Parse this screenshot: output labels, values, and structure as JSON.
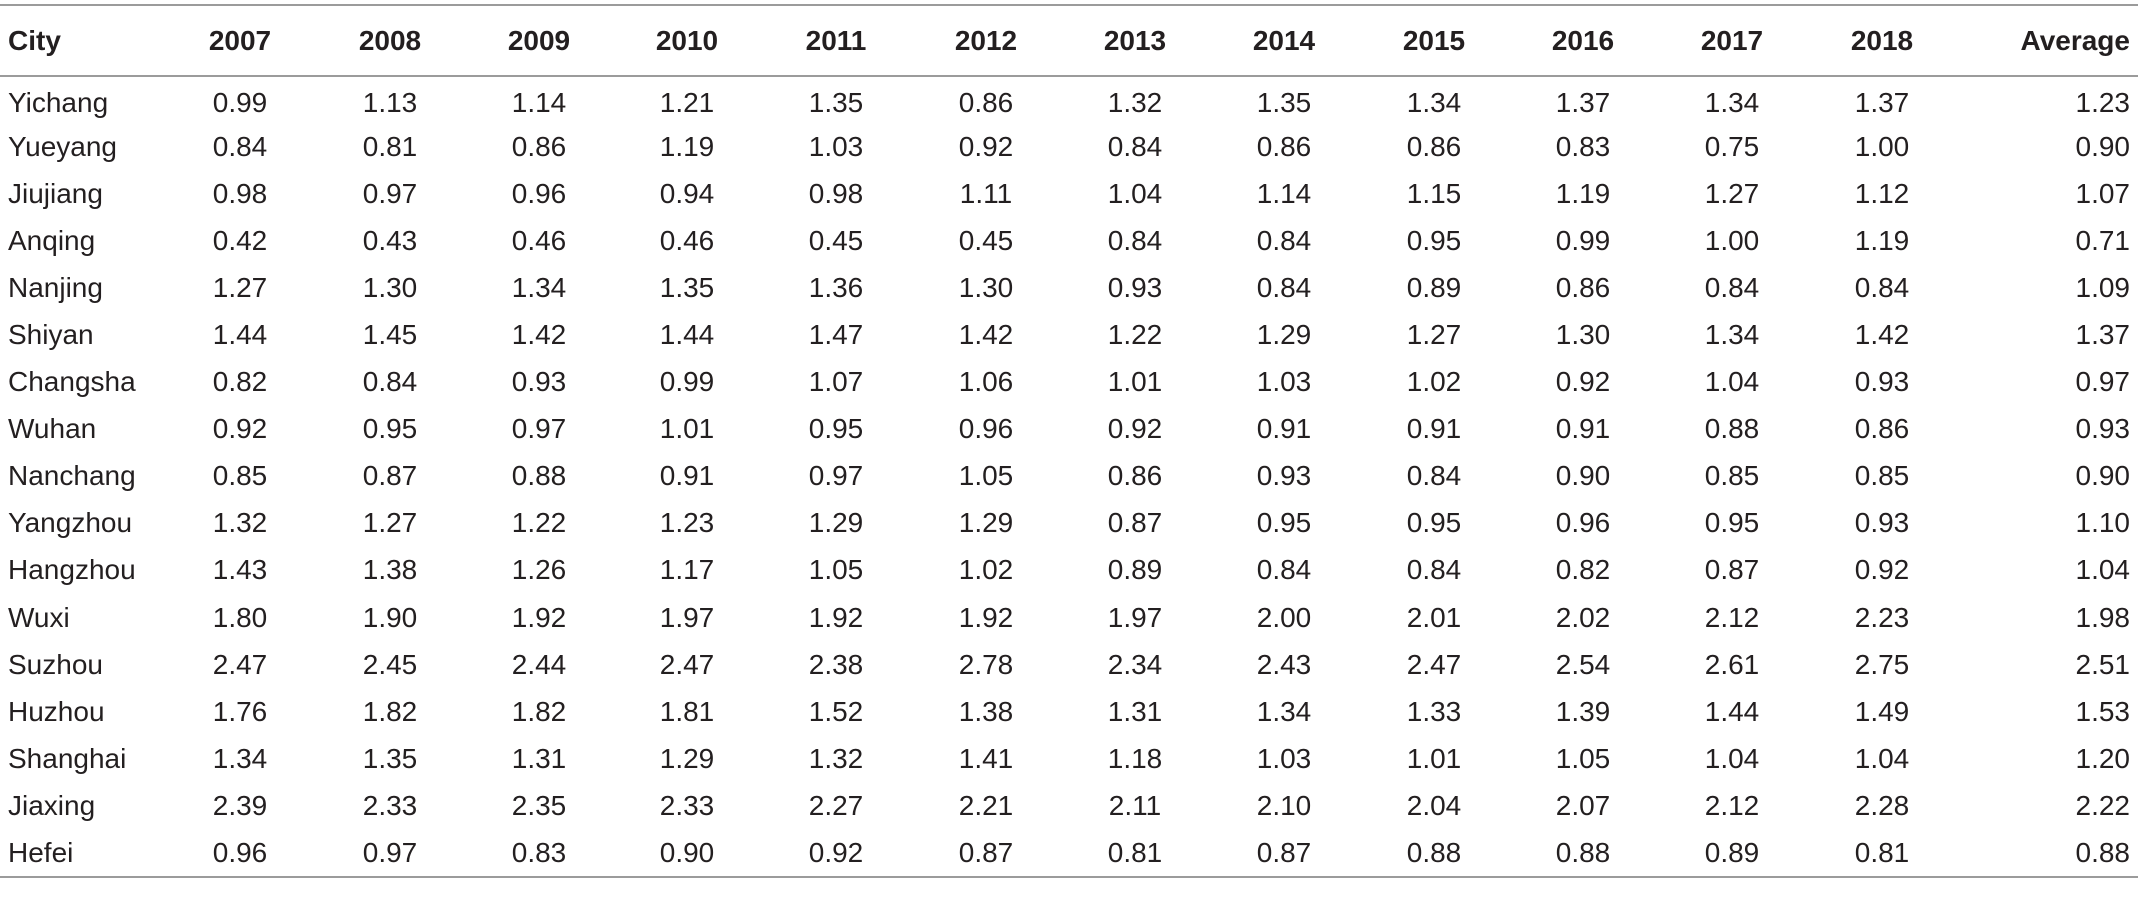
{
  "table": {
    "columns": [
      "City",
      "2007",
      "2008",
      "2009",
      "2010",
      "2011",
      "2012",
      "2013",
      "2014",
      "2015",
      "2016",
      "2017",
      "2018",
      "Average"
    ],
    "rows": [
      [
        "Yichang",
        "0.99",
        "1.13",
        "1.14",
        "1.21",
        "1.35",
        "0.86",
        "1.32",
        "1.35",
        "1.34",
        "1.37",
        "1.34",
        "1.37",
        "1.23"
      ],
      [
        "Yueyang",
        "0.84",
        "0.81",
        "0.86",
        "1.19",
        "1.03",
        "0.92",
        "0.84",
        "0.86",
        "0.86",
        "0.83",
        "0.75",
        "1.00",
        "0.90"
      ],
      [
        "Jiujiang",
        "0.98",
        "0.97",
        "0.96",
        "0.94",
        "0.98",
        "1.11",
        "1.04",
        "1.14",
        "1.15",
        "1.19",
        "1.27",
        "1.12",
        "1.07"
      ],
      [
        "Anqing",
        "0.42",
        "0.43",
        "0.46",
        "0.46",
        "0.45",
        "0.45",
        "0.84",
        "0.84",
        "0.95",
        "0.99",
        "1.00",
        "1.19",
        "0.71"
      ],
      [
        "Nanjing",
        "1.27",
        "1.30",
        "1.34",
        "1.35",
        "1.36",
        "1.30",
        "0.93",
        "0.84",
        "0.89",
        "0.86",
        "0.84",
        "0.84",
        "1.09"
      ],
      [
        "Shiyan",
        "1.44",
        "1.45",
        "1.42",
        "1.44",
        "1.47",
        "1.42",
        "1.22",
        "1.29",
        "1.27",
        "1.30",
        "1.34",
        "1.42",
        "1.37"
      ],
      [
        "Changsha",
        "0.82",
        "0.84",
        "0.93",
        "0.99",
        "1.07",
        "1.06",
        "1.01",
        "1.03",
        "1.02",
        "0.92",
        "1.04",
        "0.93",
        "0.97"
      ],
      [
        "Wuhan",
        "0.92",
        "0.95",
        "0.97",
        "1.01",
        "0.95",
        "0.96",
        "0.92",
        "0.91",
        "0.91",
        "0.91",
        "0.88",
        "0.86",
        "0.93"
      ],
      [
        "Nanchang",
        "0.85",
        "0.87",
        "0.88",
        "0.91",
        "0.97",
        "1.05",
        "0.86",
        "0.93",
        "0.84",
        "0.90",
        "0.85",
        "0.85",
        "0.90"
      ],
      [
        "Yangzhou",
        "1.32",
        "1.27",
        "1.22",
        "1.23",
        "1.29",
        "1.29",
        "0.87",
        "0.95",
        "0.95",
        "0.96",
        "0.95",
        "0.93",
        "1.10"
      ],
      [
        "Hangzhou",
        "1.43",
        "1.38",
        "1.26",
        "1.17",
        "1.05",
        "1.02",
        "0.89",
        "0.84",
        "0.84",
        "0.82",
        "0.87",
        "0.92",
        "1.04"
      ],
      [
        "Wuxi",
        "1.80",
        "1.90",
        "1.92",
        "1.97",
        "1.92",
        "1.92",
        "1.97",
        "2.00",
        "2.01",
        "2.02",
        "2.12",
        "2.23",
        "1.98"
      ],
      [
        "Suzhou",
        "2.47",
        "2.45",
        "2.44",
        "2.47",
        "2.38",
        "2.78",
        "2.34",
        "2.43",
        "2.47",
        "2.54",
        "2.61",
        "2.75",
        "2.51"
      ],
      [
        "Huzhou",
        "1.76",
        "1.82",
        "1.82",
        "1.81",
        "1.52",
        "1.38",
        "1.31",
        "1.34",
        "1.33",
        "1.39",
        "1.44",
        "1.49",
        "1.53"
      ],
      [
        "Shanghai",
        "1.34",
        "1.35",
        "1.31",
        "1.29",
        "1.32",
        "1.41",
        "1.18",
        "1.03",
        "1.01",
        "1.05",
        "1.04",
        "1.04",
        "1.20"
      ],
      [
        "Jiaxing",
        "2.39",
        "2.33",
        "2.35",
        "2.33",
        "2.27",
        "2.21",
        "2.11",
        "2.10",
        "2.04",
        "2.07",
        "2.12",
        "2.28",
        "2.22"
      ],
      [
        "Hefei",
        "0.96",
        "0.97",
        "0.83",
        "0.90",
        "0.92",
        "0.87",
        "0.81",
        "0.87",
        "0.88",
        "0.88",
        "0.89",
        "0.81",
        "0.88"
      ]
    ]
  },
  "colors": {
    "text": "#231f20",
    "rule": "#9b9b9b",
    "background": "#ffffff"
  }
}
